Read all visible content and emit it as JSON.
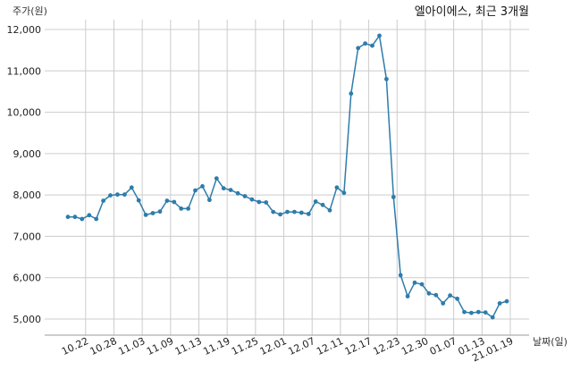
{
  "chart_data": {
    "type": "line",
    "title": "엘아이에스, 최근 3개월",
    "ylabel": "주가(원)",
    "xlabel": "날짜(일)",
    "ylim": [
      4700,
      12300
    ],
    "yticks": [
      5000,
      6000,
      7000,
      8000,
      9000,
      10000,
      11000,
      12000
    ],
    "ytick_labels": [
      "5,000",
      "6,000",
      "7,000",
      "8,000",
      "9,000",
      "10,000",
      "11,000",
      "12,000"
    ],
    "xtick_labels": [
      "10.22",
      "10.28",
      "11.03",
      "11.09",
      "11.13",
      "11.19",
      "11.25",
      "12.01",
      "12.07",
      "12.11",
      "12.17",
      "12.23",
      "12.30",
      "01.07",
      "01.13",
      "21.01.19"
    ],
    "xtick_positions": [
      2.5,
      6.5,
      10.5,
      14.5,
      18.5,
      22.5,
      26.5,
      30.5,
      34.5,
      38.5,
      42.5,
      46.5,
      50.5,
      54.5,
      58.5,
      62.5
    ],
    "grid": true,
    "series": [
      {
        "color": "#2e7cab",
        "values": [
          7470,
          7470,
          7420,
          7510,
          7420,
          7860,
          7990,
          8010,
          8010,
          8180,
          7870,
          7520,
          7560,
          7600,
          7860,
          7830,
          7670,
          7670,
          8110,
          8210,
          7880,
          8400,
          8160,
          8120,
          8040,
          7970,
          7890,
          7830,
          7820,
          7590,
          7530,
          7590,
          7590,
          7570,
          7540,
          7840,
          7760,
          7630,
          8180,
          8050,
          10450,
          11550,
          11660,
          11610,
          11850,
          10800,
          7950,
          6060,
          5550,
          5880,
          5840,
          5620,
          5580,
          5380,
          5570,
          5490,
          5170,
          5150,
          5170,
          5160,
          5040,
          5380,
          5430
        ]
      }
    ]
  }
}
